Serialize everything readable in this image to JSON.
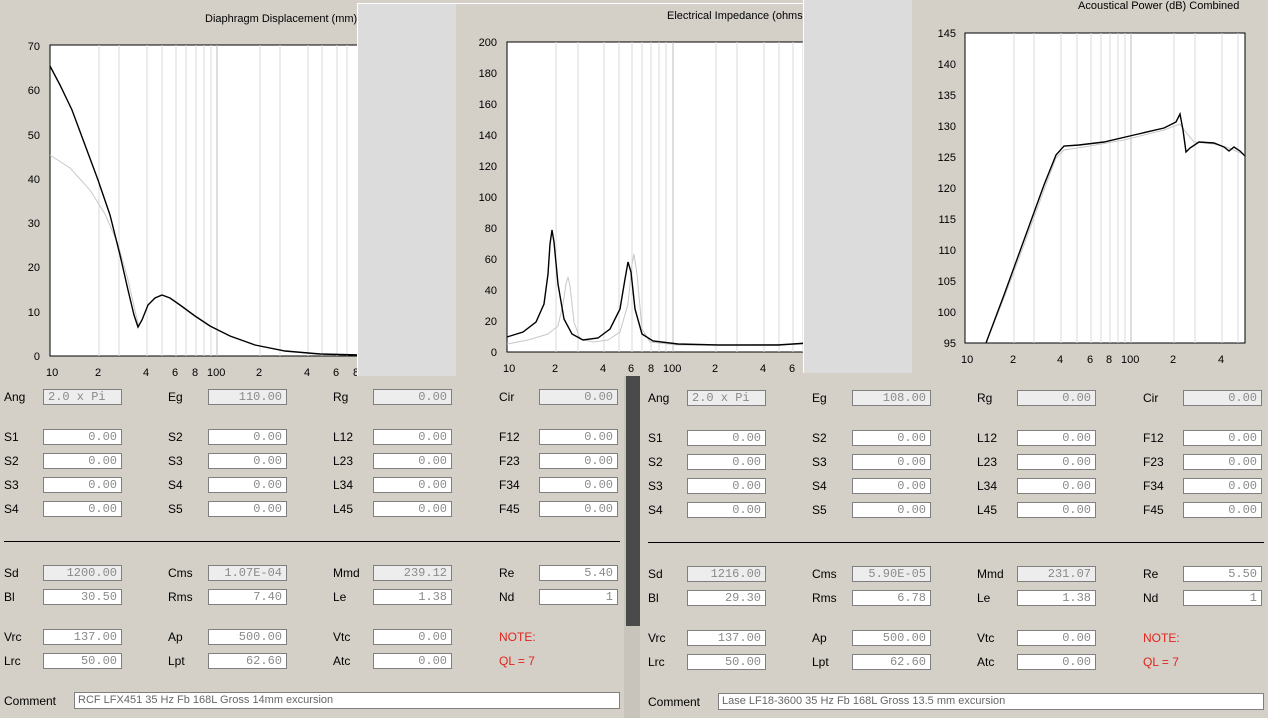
{
  "charts": [
    {
      "title": "Diaphragm Displacement (mm)",
      "y_ticks": [
        "70",
        "60",
        "50",
        "40",
        "30",
        "20",
        "10",
        "0"
      ],
      "x_ticks": [
        "10",
        "2",
        "4",
        "6",
        "8",
        "100",
        "2",
        "4",
        "6",
        "8"
      ],
      "ylim": [
        0,
        70
      ],
      "xscale": "log"
    },
    {
      "title": "Electrical Impedance (ohms)",
      "y_ticks": [
        "200",
        "180",
        "160",
        "140",
        "120",
        "100",
        "80",
        "60",
        "40",
        "20",
        "0"
      ],
      "x_ticks": [
        "10",
        "2",
        "4",
        "6",
        "8",
        "100",
        "2",
        "4",
        "6"
      ],
      "ylim": [
        0,
        200
      ],
      "xscale": "log"
    },
    {
      "title": "Acoustical Power (dB)   Combined",
      "y_ticks": [
        "145",
        "140",
        "135",
        "130",
        "125",
        "120",
        "115",
        "110",
        "105",
        "100",
        "95"
      ],
      "x_ticks": [
        "10",
        "2",
        "4",
        "6",
        "8",
        "100",
        "2",
        "4"
      ],
      "ylim": [
        95,
        145
      ],
      "xscale": "log"
    }
  ],
  "panels": [
    {
      "ang": "2.0 x Pi",
      "eg": "110.00",
      "rg": "0.00",
      "cir": "0.00",
      "s1": "0.00",
      "s2b": "0.00",
      "l12": "0.00",
      "f12": "0.00",
      "s2": "0.00",
      "s3b": "0.00",
      "l23": "0.00",
      "f23": "0.00",
      "s3": "0.00",
      "s4b": "0.00",
      "l34": "0.00",
      "f34": "0.00",
      "s4": "0.00",
      "s5b": "0.00",
      "l45": "0.00",
      "f45": "0.00",
      "sd": "1200.00",
      "cms": "1.07E-04",
      "mmd": "239.12",
      "re": "5.40",
      "bl": "30.50",
      "rms": "7.40",
      "le": "1.38",
      "nd": "1",
      "vrc": "137.00",
      "ap": "500.00",
      "vtc": "0.00",
      "lrc": "50.00",
      "lpt": "62.60",
      "atc": "0.00",
      "note": "NOTE:",
      "ql": "QL = 7",
      "comment": "RCF LFX451 35 Hz Fb 168L Gross  14mm excursion"
    },
    {
      "ang": "2.0 x Pi",
      "eg": "108.00",
      "rg": "0.00",
      "cir": "0.00",
      "s1": "0.00",
      "s2b": "0.00",
      "l12": "0.00",
      "f12": "0.00",
      "s2": "0.00",
      "s3b": "0.00",
      "l23": "0.00",
      "f23": "0.00",
      "s3": "0.00",
      "s4b": "0.00",
      "l34": "0.00",
      "f34": "0.00",
      "s4": "0.00",
      "s5b": "0.00",
      "l45": "0.00",
      "f45": "0.00",
      "sd": "1216.00",
      "cms": "5.90E-05",
      "mmd": "231.07",
      "re": "5.50",
      "bl": "29.30",
      "rms": "6.78",
      "le": "1.38",
      "nd": "1",
      "vrc": "137.00",
      "ap": "500.00",
      "vtc": "0.00",
      "lrc": "50.00",
      "lpt": "62.60",
      "atc": "0.00",
      "note": "NOTE:",
      "ql": "QL = 7",
      "comment": "Lase LF18-3600 35 Hz Fb 168L Gross  13.5 mm excursion"
    }
  ],
  "labels": {
    "ang": "Ang",
    "eg": "Eg",
    "rg": "Rg",
    "cir": "Cir",
    "s1": "S1",
    "s2": "S2",
    "s3": "S3",
    "s4": "S4",
    "s5": "S5",
    "l12": "L12",
    "l23": "L23",
    "l34": "L34",
    "l45": "L45",
    "f12": "F12",
    "f23": "F23",
    "f34": "F34",
    "f45": "F45",
    "sd": "Sd",
    "cms": "Cms",
    "mmd": "Mmd",
    "re": "Re",
    "bl": "Bl",
    "rms": "Rms",
    "le": "Le",
    "nd": "Nd",
    "vrc": "Vrc",
    "ap": "Ap",
    "vtc": "Vtc",
    "lrc": "Lrc",
    "lpt": "Lpt",
    "atc": "Atc",
    "comment": "Comment"
  }
}
